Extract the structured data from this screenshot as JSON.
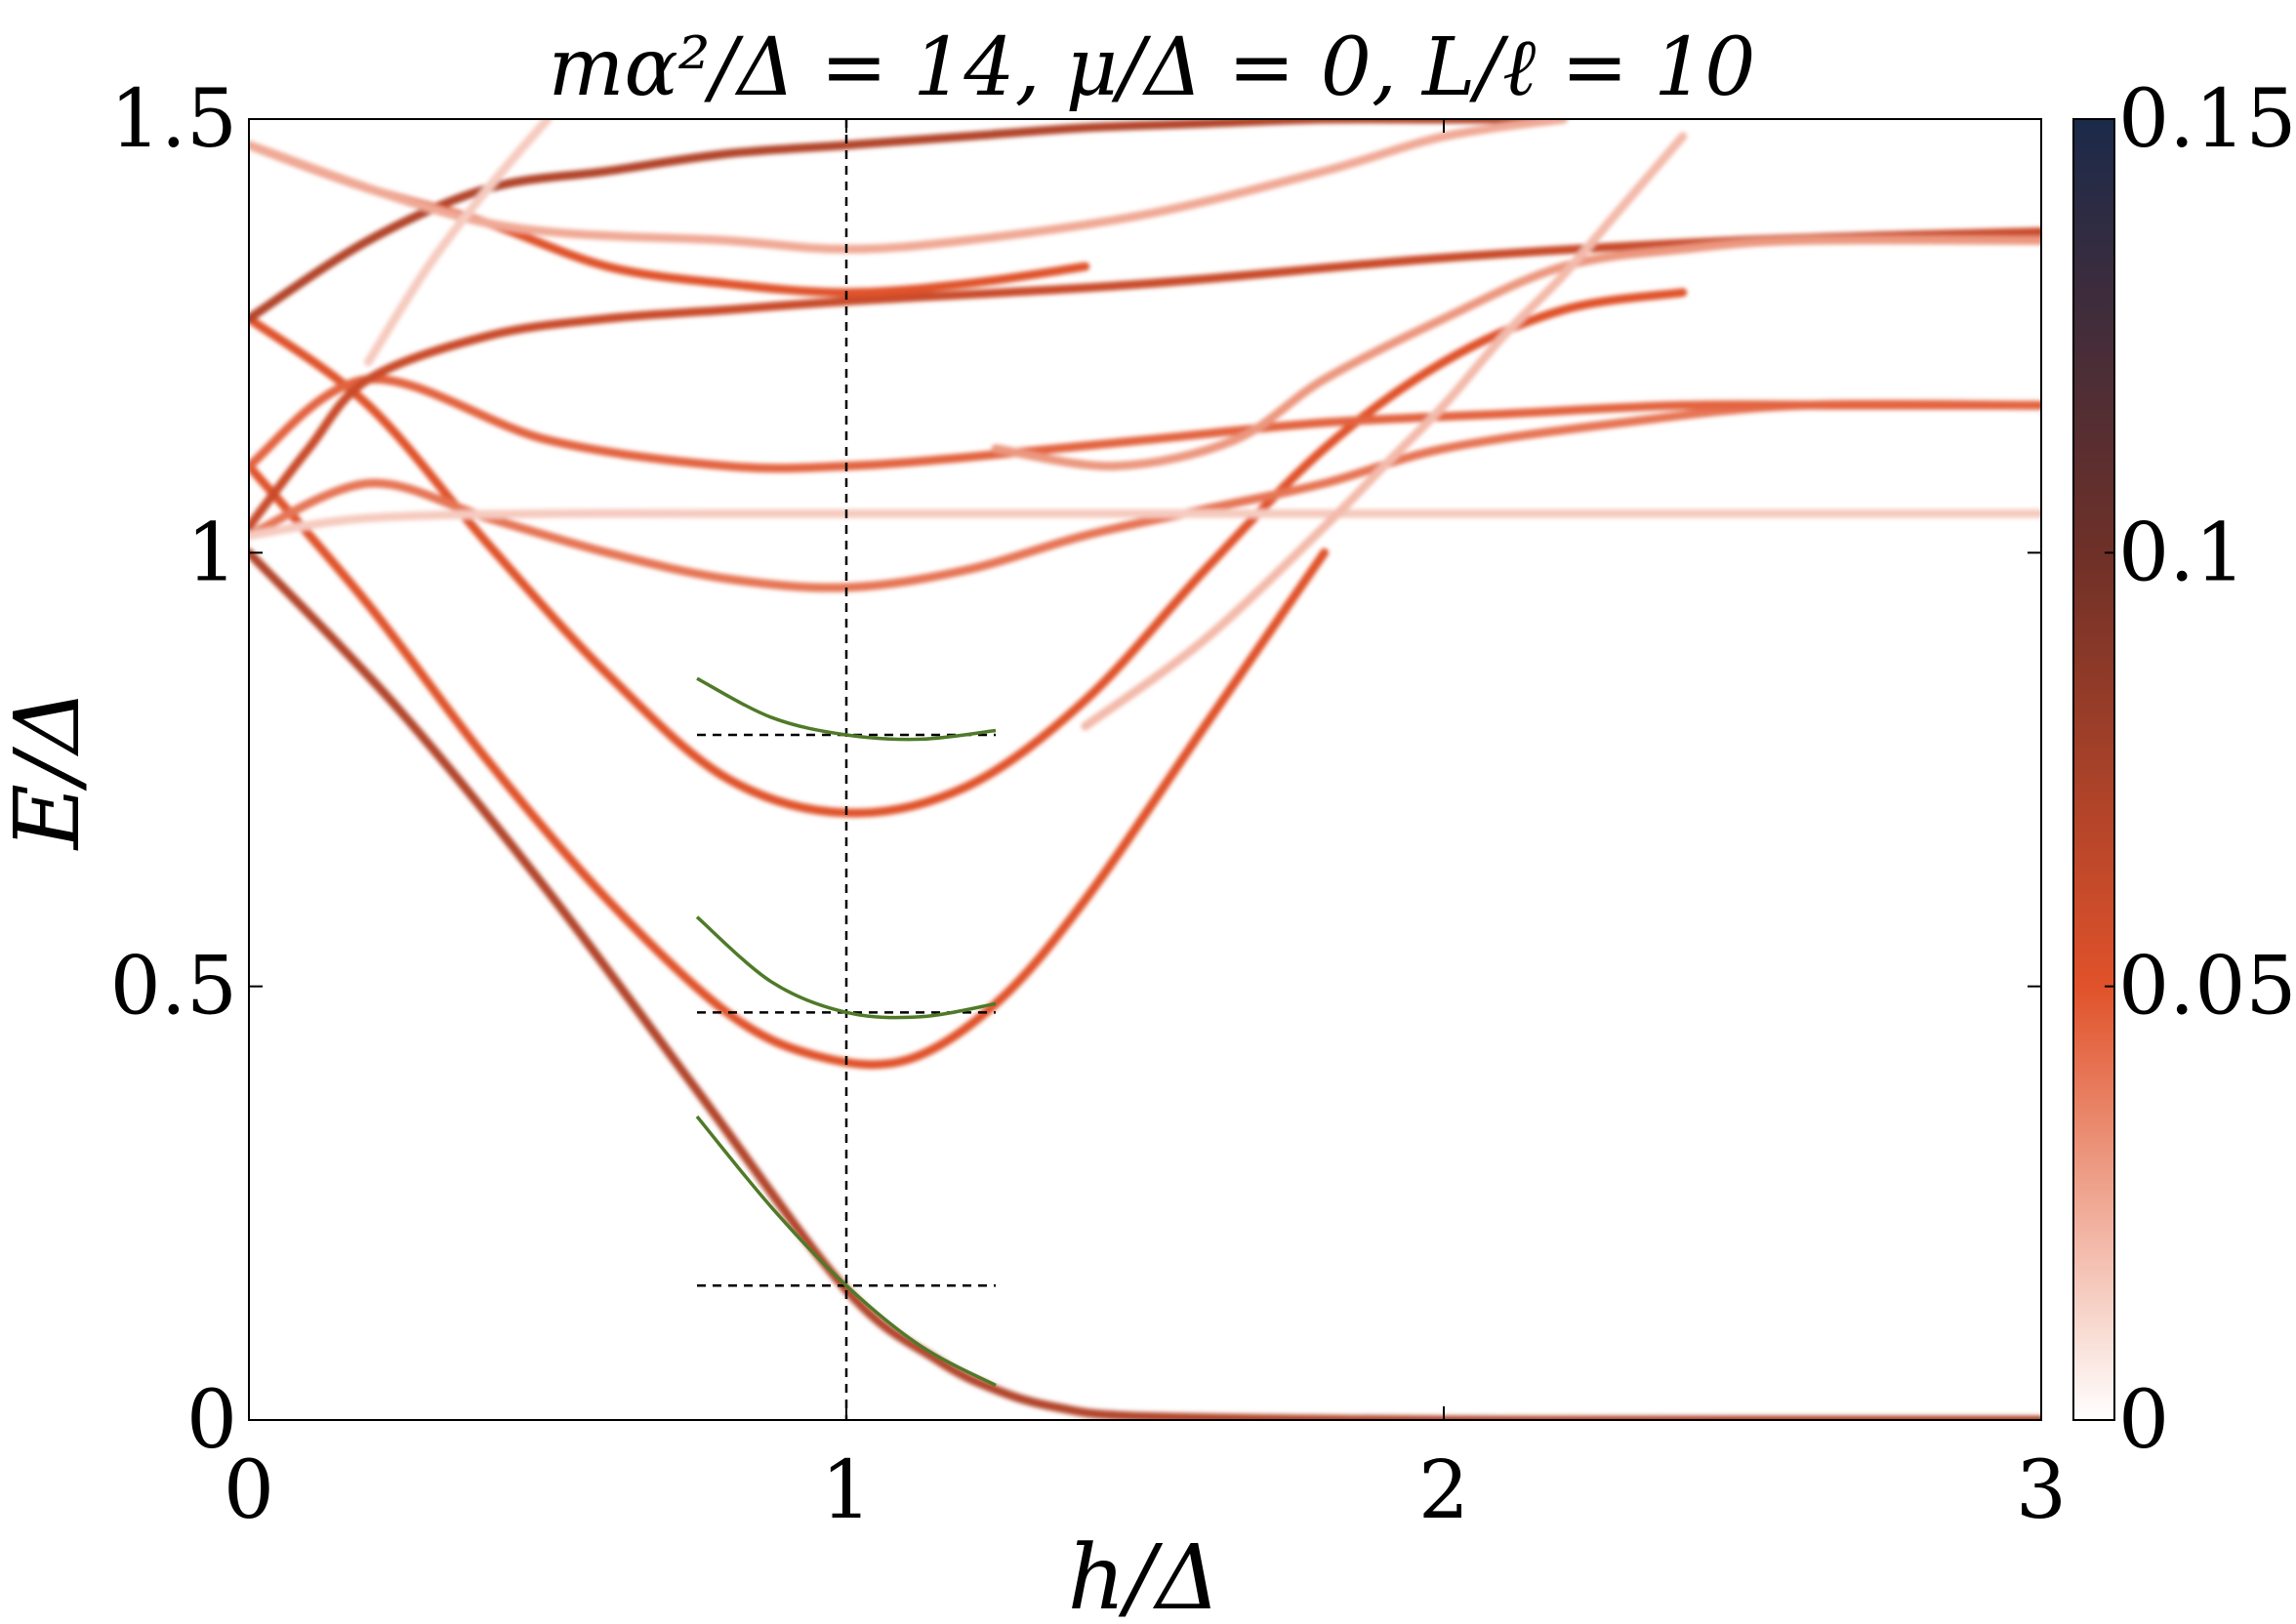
{
  "chart_data": {
    "type": "heatmap",
    "title": "mα²/Δ = 14, μ/Δ = 0, L/ℓ = 10",
    "xlabel": "h/Δ",
    "ylabel": "E/Δ",
    "xlim": [
      0,
      3
    ],
    "ylim": [
      0,
      1.5
    ],
    "xticks": [
      0,
      1,
      2,
      3
    ],
    "xtick_labels": [
      "0",
      "1",
      "2",
      "3"
    ],
    "yticks": [
      0,
      0.5,
      1,
      1.5
    ],
    "ytick_labels": [
      "0",
      "0.5",
      "1",
      "1.5"
    ],
    "grid": false,
    "colorbar": {
      "range": [
        0,
        0.15
      ],
      "ticks": [
        0,
        0.05,
        0.1,
        0.15
      ],
      "tick_labels": [
        "0",
        "0.05",
        "0.1",
        "0.15"
      ],
      "colors": [
        "#ffffff",
        "#e0522a",
        "#6e3028",
        "#1b2a4a"
      ]
    },
    "vertical_marker_x": 1,
    "bands": [
      {
        "x": [
          0,
          0.25,
          0.5,
          0.75,
          1.0,
          1.15,
          1.25,
          1.35,
          1.5,
          2.0,
          2.5,
          3.0
        ],
        "y": [
          1.0,
          0.82,
          0.61,
          0.38,
          0.15,
          0.07,
          0.035,
          0.015,
          0.004,
          0.0,
          0.0,
          0.0
        ],
        "intensity": 0.07
      },
      {
        "x": [
          0,
          0.2,
          0.4,
          0.6,
          0.8,
          0.95,
          1.1,
          1.25,
          1.4,
          1.6,
          1.8
        ],
        "y": [
          1.1,
          0.94,
          0.76,
          0.6,
          0.47,
          0.42,
          0.415,
          0.48,
          0.6,
          0.8,
          1.0
        ],
        "intensity": 0.05
      },
      {
        "x": [
          0,
          0.2,
          0.4,
          0.6,
          0.8,
          1.0,
          1.2,
          1.4,
          1.6,
          1.8,
          2.0,
          2.2,
          2.4
        ],
        "y": [
          1.27,
          1.17,
          1.01,
          0.86,
          0.74,
          0.7,
          0.73,
          0.83,
          0.98,
          1.12,
          1.22,
          1.28,
          1.3
        ],
        "intensity": 0.05
      },
      {
        "x": [
          0,
          0.2,
          0.4,
          0.6,
          0.8,
          1.0,
          1.2,
          1.4,
          1.6,
          1.8,
          2.0,
          2.3,
          2.6,
          3.0
        ],
        "y": [
          1.02,
          1.08,
          1.04,
          1.0,
          0.97,
          0.96,
          0.98,
          1.02,
          1.05,
          1.08,
          1.12,
          1.15,
          1.17,
          1.17
        ],
        "intensity": 0.04
      },
      {
        "x": [
          0,
          0.2,
          0.5,
          0.8,
          1.0,
          1.2,
          1.5,
          1.8,
          2.1,
          2.4,
          2.7,
          3.0
        ],
        "y": [
          1.1,
          1.2,
          1.13,
          1.1,
          1.1,
          1.11,
          1.13,
          1.15,
          1.16,
          1.17,
          1.17,
          1.17
        ],
        "intensity": 0.045
      },
      {
        "x": [
          0,
          0.2,
          0.5,
          0.8,
          1.0,
          1.5,
          2.0,
          2.5,
          3.0
        ],
        "y": [
          1.02,
          1.04,
          1.045,
          1.045,
          1.045,
          1.045,
          1.045,
          1.045,
          1.045
        ],
        "intensity": 0.015
      },
      {
        "x": [
          0,
          0.1,
          0.2,
          0.4,
          0.6,
          0.8,
          1.0,
          1.5,
          2.0,
          2.5,
          3.0
        ],
        "y": [
          1.03,
          1.12,
          1.2,
          1.25,
          1.27,
          1.28,
          1.29,
          1.31,
          1.34,
          1.36,
          1.37
        ],
        "intensity": 0.06
      },
      {
        "x": [
          0,
          0.2,
          0.4,
          0.6,
          0.8,
          1.0,
          1.2,
          1.4,
          1.6,
          1.8,
          2.0,
          2.2
        ],
        "y": [
          1.27,
          1.36,
          1.42,
          1.44,
          1.46,
          1.47,
          1.48,
          1.49,
          1.495,
          1.5,
          1.5,
          1.5
        ],
        "intensity": 0.07
      },
      {
        "x": [
          0,
          0.2,
          0.4,
          0.6,
          0.8,
          1.0,
          1.2,
          1.4
        ],
        "y": [
          1.47,
          1.42,
          1.38,
          1.33,
          1.31,
          1.3,
          1.31,
          1.33
        ],
        "intensity": 0.05
      },
      {
        "x": [
          0,
          0.4,
          0.8,
          1.0,
          1.2,
          1.5,
          1.8,
          2.0,
          2.2
        ],
        "y": [
          1.47,
          1.38,
          1.36,
          1.35,
          1.36,
          1.39,
          1.44,
          1.48,
          1.5
        ],
        "intensity": 0.025
      },
      {
        "x": [
          1.25,
          1.45,
          1.65,
          1.8,
          2.0,
          2.2,
          2.4,
          2.6,
          3.0
        ],
        "y": [
          1.12,
          1.1,
          1.13,
          1.2,
          1.27,
          1.33,
          1.35,
          1.36,
          1.36
        ],
        "intensity": 0.03
      },
      {
        "x": [
          1.4,
          1.6,
          1.8,
          1.9,
          2.0,
          2.1,
          2.2,
          2.3,
          2.4
        ],
        "y": [
          0.8,
          0.9,
          1.03,
          1.1,
          1.17,
          1.25,
          1.32,
          1.4,
          1.48
        ],
        "intensity": 0.02
      },
      {
        "x": [
          0.2,
          0.3,
          0.4,
          0.5
        ],
        "y": [
          1.22,
          1.33,
          1.42,
          1.5
        ],
        "intensity": 0.015
      }
    ],
    "approximations": [
      {
        "x": [
          0.75,
          0.875,
          1.0,
          1.125,
          1.25
        ],
        "y": [
          0.35,
          0.245,
          0.155,
          0.085,
          0.04
        ]
      },
      {
        "x": [
          0.75,
          0.875,
          1.0,
          1.125,
          1.25
        ],
        "y": [
          0.58,
          0.505,
          0.47,
          0.465,
          0.48
        ]
      },
      {
        "x": [
          0.75,
          0.875,
          1.0,
          1.125,
          1.25
        ],
        "y": [
          0.855,
          0.81,
          0.79,
          0.785,
          0.795
        ]
      }
    ],
    "horizontal_markers": [
      {
        "x": [
          0.75,
          1.25
        ],
        "y": 0.155
      },
      {
        "x": [
          0.75,
          1.25
        ],
        "y": 0.47
      },
      {
        "x": [
          0.75,
          1.25
        ],
        "y": 0.79
      }
    ],
    "approximation_color": "#4f7a28",
    "marker_color": "#000000"
  }
}
